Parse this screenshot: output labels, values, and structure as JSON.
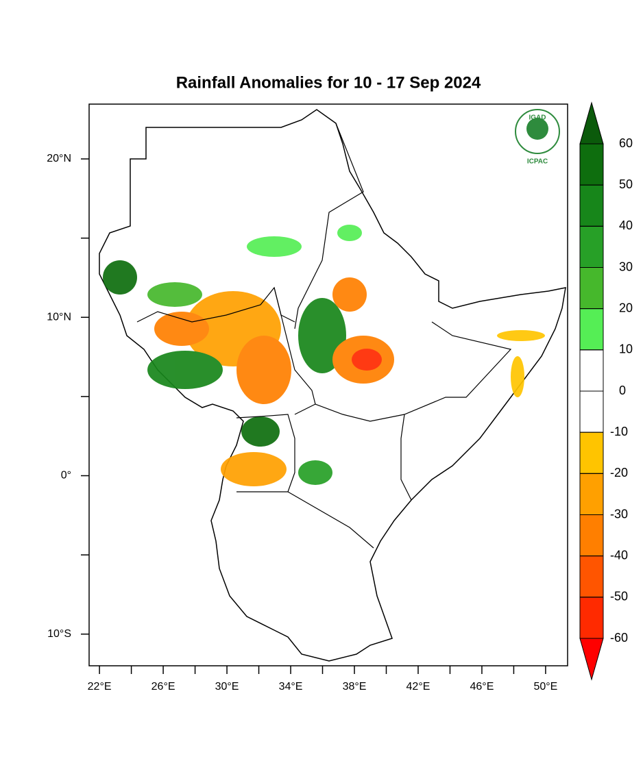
{
  "title": "Rainfall Anomalies for 10 - 17 Sep 2024",
  "logo": {
    "name": "IGAD",
    "org": "ICPAC"
  },
  "map": {
    "xlim": [
      21.35,
      51.38
    ],
    "ylim": [
      -12,
      23.46
    ],
    "xticks": [
      {
        "value": 22,
        "label": "22°E"
      },
      {
        "value": 26,
        "label": "26°E"
      },
      {
        "value": 30,
        "label": "30°E"
      },
      {
        "value": 34,
        "label": "34°E"
      },
      {
        "value": 38,
        "label": "38°E"
      },
      {
        "value": 42,
        "label": "42°E"
      },
      {
        "value": 46,
        "label": "46°E"
      },
      {
        "value": 50,
        "label": "50°E"
      }
    ],
    "xminorticks": [
      24,
      28,
      32,
      36,
      40,
      44,
      48
    ],
    "yticks": [
      {
        "value": 20,
        "label": "20°N"
      },
      {
        "value": 10,
        "label": "10°N"
      },
      {
        "value": 0,
        "label": "0°"
      },
      {
        "value": -10,
        "label": "10°S"
      }
    ],
    "yminorticks": [
      15,
      5,
      -5
    ]
  },
  "colorbar": {
    "levels": [
      60,
      50,
      40,
      30,
      20,
      10,
      0,
      -10,
      -20,
      -30,
      -40,
      -50,
      -60
    ],
    "colors": [
      "#0b5a0b",
      "#0e6e0e",
      "#17861a",
      "#27a027",
      "#46b82c",
      "#55ee55",
      "#ffffff",
      "#ffffff",
      "#ffc400",
      "#ffa000",
      "#ff7f00",
      "#ff5500",
      "#ff2a00",
      "#ff0000"
    ],
    "extend": "both"
  }
}
